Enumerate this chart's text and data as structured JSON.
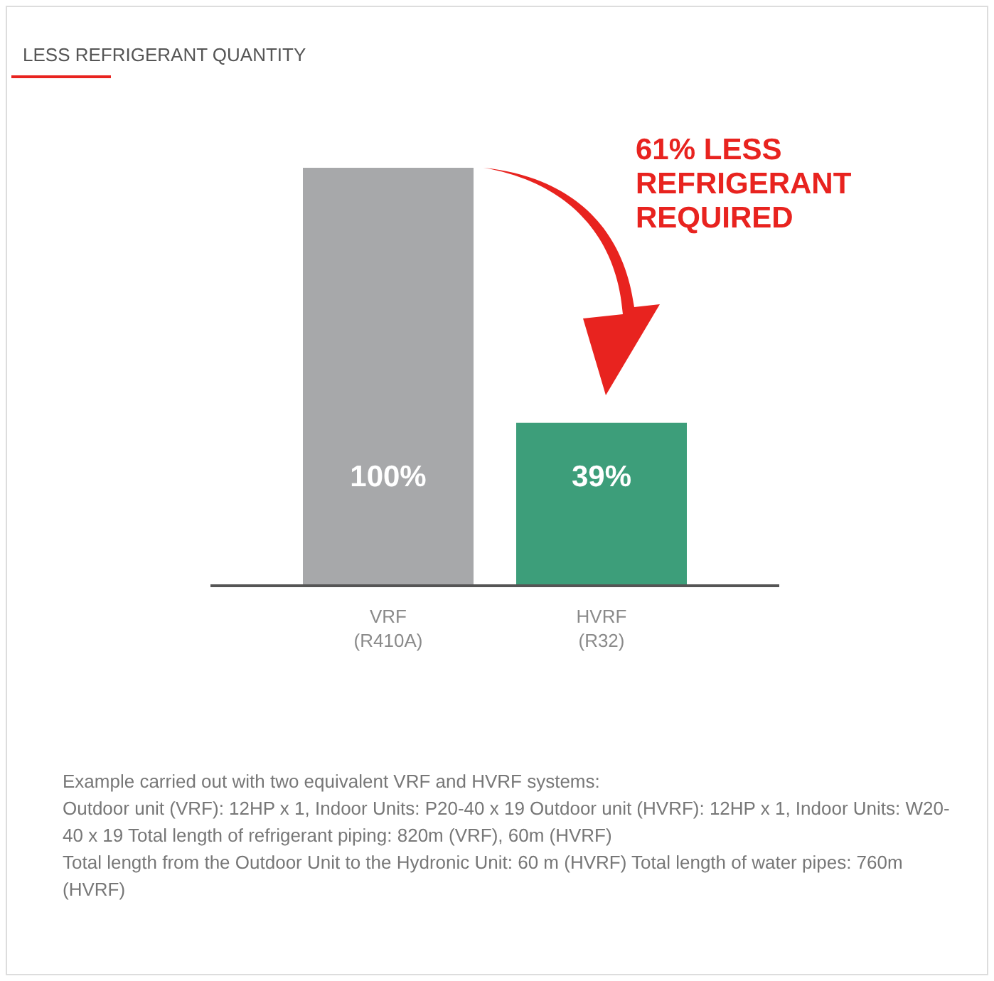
{
  "chart_data": {
    "type": "bar",
    "title": "LESS REFRIGERANT QUANTITY",
    "categories": [
      "VRF\n(R410A)",
      "HVRF\n(R32)"
    ],
    "values": [
      100,
      39
    ],
    "colors": [
      "#a7a8aa",
      "#3d9e7a"
    ],
    "value_labels": [
      "100%",
      "39%"
    ],
    "tick_labels": "x",
    "annotations": [
      "61% LESS\nREFRIGERANT\nREQUIRED",
      "Example carried out with two equivalent VRF and HVRF systems:\nOutdoor unit (VRF): 12HP x 1, Indoor Units: P20-40 x 19 Outdoor unit (HVRF): 12HP x 1, Indoor Units: W20-40 x 19 Total length of refrigerant piping: 820m (VRF), 60m (HVRF)\nTotal length from the Outdoor Unit to the Hydronic Unit: 60 m (HVRF) Total length of water pipes: 760m (HVRF)"
    ]
  }
}
